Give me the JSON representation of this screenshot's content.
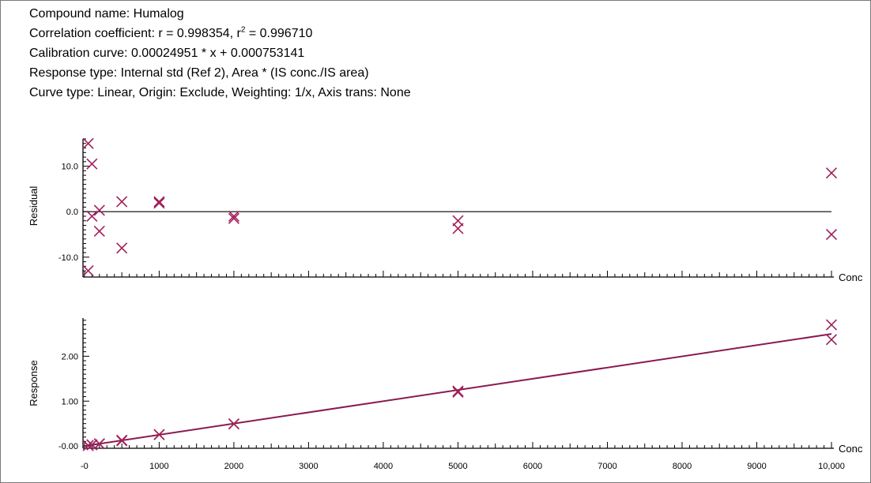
{
  "header": {
    "compound": "Compound name: Humalog",
    "correlation_prefix": "Correlation coefficient: r = 0.998354, r",
    "correlation_sup": "2",
    "correlation_suffix": " = 0.996710",
    "calibration": "Calibration curve: 0.00024951 * x + 0.000753141",
    "response_type": "Response type: Internal std (Ref 2), Area * (IS conc./IS area)",
    "curve_type": "Curve type: Linear, Origin: Exclude, Weighting: 1/x, Axis trans: None"
  },
  "colors": {
    "marker": "#a0205a",
    "fit_line": "#8a1a50",
    "axis": "#000000"
  },
  "chart_data": [
    {
      "type": "scatter",
      "title": "",
      "xlabel": "Conc",
      "ylabel": "Residual",
      "xlim": [
        -20,
        10000
      ],
      "ylim": [
        -13.5,
        16
      ],
      "yticks": [
        10.0,
        0.0,
        -10.0
      ],
      "ytick_labels": [
        "10.0",
        "0.0",
        "-10.0"
      ],
      "zero_line": true,
      "points": [
        {
          "x": 50,
          "y": 15.0
        },
        {
          "x": 50,
          "y": -13.0
        },
        {
          "x": 100,
          "y": 10.5
        },
        {
          "x": 100,
          "y": -1.0
        },
        {
          "x": 200,
          "y": 0.3
        },
        {
          "x": 200,
          "y": -4.3
        },
        {
          "x": 500,
          "y": 2.2
        },
        {
          "x": 500,
          "y": -8.0
        },
        {
          "x": 1000,
          "y": 2.2
        },
        {
          "x": 1000,
          "y": 1.9
        },
        {
          "x": 2000,
          "y": -1.0
        },
        {
          "x": 2000,
          "y": -1.5
        },
        {
          "x": 5000,
          "y": -2.0
        },
        {
          "x": 5000,
          "y": -3.7
        },
        {
          "x": 10000,
          "y": 8.5
        },
        {
          "x": 10000,
          "y": -5.0
        }
      ]
    },
    {
      "type": "scatter",
      "title": "",
      "xlabel": "Conc",
      "ylabel": "Response",
      "xlim": [
        -20,
        10000
      ],
      "ylim": [
        -0.05,
        2.85
      ],
      "yticks": [
        2.0,
        1.0,
        0.0
      ],
      "ytick_labels": [
        "2.00",
        "1.00",
        "-0.00"
      ],
      "xticks": [
        0,
        1000,
        2000,
        3000,
        4000,
        5000,
        6000,
        7000,
        8000,
        9000,
        10000
      ],
      "xtick_labels": [
        "-0",
        "1000",
        "2000",
        "3000",
        "4000",
        "5000",
        "6000",
        "7000",
        "8000",
        "9000",
        "10,000"
      ],
      "fit": {
        "slope": 0.00024951,
        "intercept": 0.000753141
      },
      "points": [
        {
          "x": 50,
          "y": 0.012
        },
        {
          "x": 50,
          "y": 0.01
        },
        {
          "x": 100,
          "y": 0.027
        },
        {
          "x": 100,
          "y": 0.025
        },
        {
          "x": 200,
          "y": 0.051
        },
        {
          "x": 200,
          "y": 0.049
        },
        {
          "x": 500,
          "y": 0.128
        },
        {
          "x": 500,
          "y": 0.116
        },
        {
          "x": 1000,
          "y": 0.255
        },
        {
          "x": 1000,
          "y": 0.254
        },
        {
          "x": 2000,
          "y": 0.494
        },
        {
          "x": 2000,
          "y": 0.492
        },
        {
          "x": 5000,
          "y": 1.223
        },
        {
          "x": 5000,
          "y": 1.2
        },
        {
          "x": 10000,
          "y": 2.7
        },
        {
          "x": 10000,
          "y": 2.37
        }
      ]
    }
  ]
}
